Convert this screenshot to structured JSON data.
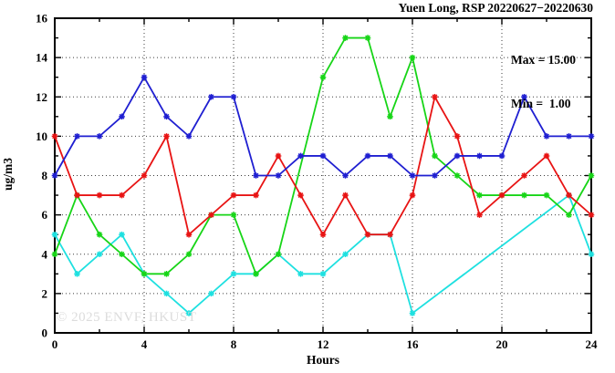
{
  "watermark": "© 2025 ENVF, HKUST",
  "legend": {
    "max_label": "Max = 15.00",
    "min_label": "Min =  1.00"
  },
  "chart_data": {
    "type": "line",
    "title": "Yuen Long, RSP 20220627−20220630",
    "xlabel": "Hours",
    "ylabel": "ug/m3",
    "xlim": [
      0,
      24
    ],
    "ylim": [
      0,
      16
    ],
    "x_major_ticks": [
      0,
      4,
      8,
      12,
      16,
      20,
      24
    ],
    "x_minor_ticks": [
      2,
      6,
      10,
      14,
      18,
      22
    ],
    "y_major_ticks": [
      0,
      2,
      4,
      6,
      8,
      10,
      12,
      14,
      16
    ],
    "y_minor_ticks": [
      1,
      3,
      5,
      7,
      9,
      11,
      13,
      15
    ],
    "x_grid": [
      4,
      8,
      12,
      16,
      20
    ],
    "y_grid": [
      2,
      4,
      6,
      8,
      10,
      12,
      14
    ],
    "grid": true,
    "legend_position": "top-right-inside",
    "stats": {
      "max": 15.0,
      "min": 1.0
    },
    "x": [
      0,
      1,
      2,
      3,
      4,
      5,
      6,
      7,
      8,
      9,
      10,
      11,
      12,
      13,
      14,
      15,
      16,
      17,
      18,
      19,
      20,
      21,
      22,
      23,
      24
    ],
    "series": [
      {
        "name": "cyan-line",
        "color": "#1ee0e0",
        "values": [
          5,
          3,
          4,
          5,
          3,
          2,
          1,
          2,
          3,
          3,
          4,
          3,
          3,
          4,
          5,
          5,
          1,
          null,
          null,
          null,
          null,
          null,
          null,
          7,
          4
        ]
      },
      {
        "name": "green-line",
        "color": "#17d517",
        "values": [
          4,
          7,
          5,
          4,
          3,
          3,
          4,
          6,
          6,
          3,
          4,
          null,
          13,
          15,
          15,
          11,
          14,
          9,
          8,
          7,
          7,
          7,
          7,
          6,
          8
        ]
      },
      {
        "name": "red-line",
        "color": "#e81414",
        "values": [
          10,
          7,
          7,
          7,
          8,
          10,
          5,
          6,
          7,
          7,
          9,
          7,
          5,
          7,
          5,
          5,
          7,
          12,
          10,
          6,
          7,
          8,
          9,
          7,
          6
        ]
      },
      {
        "name": "blue-line",
        "color": "#1f1fd1",
        "values": [
          8,
          10,
          10,
          11,
          13,
          11,
          10,
          12,
          12,
          8,
          8,
          9,
          9,
          8,
          9,
          9,
          8,
          8,
          9,
          9,
          9,
          12,
          10,
          10,
          10
        ]
      }
    ]
  }
}
